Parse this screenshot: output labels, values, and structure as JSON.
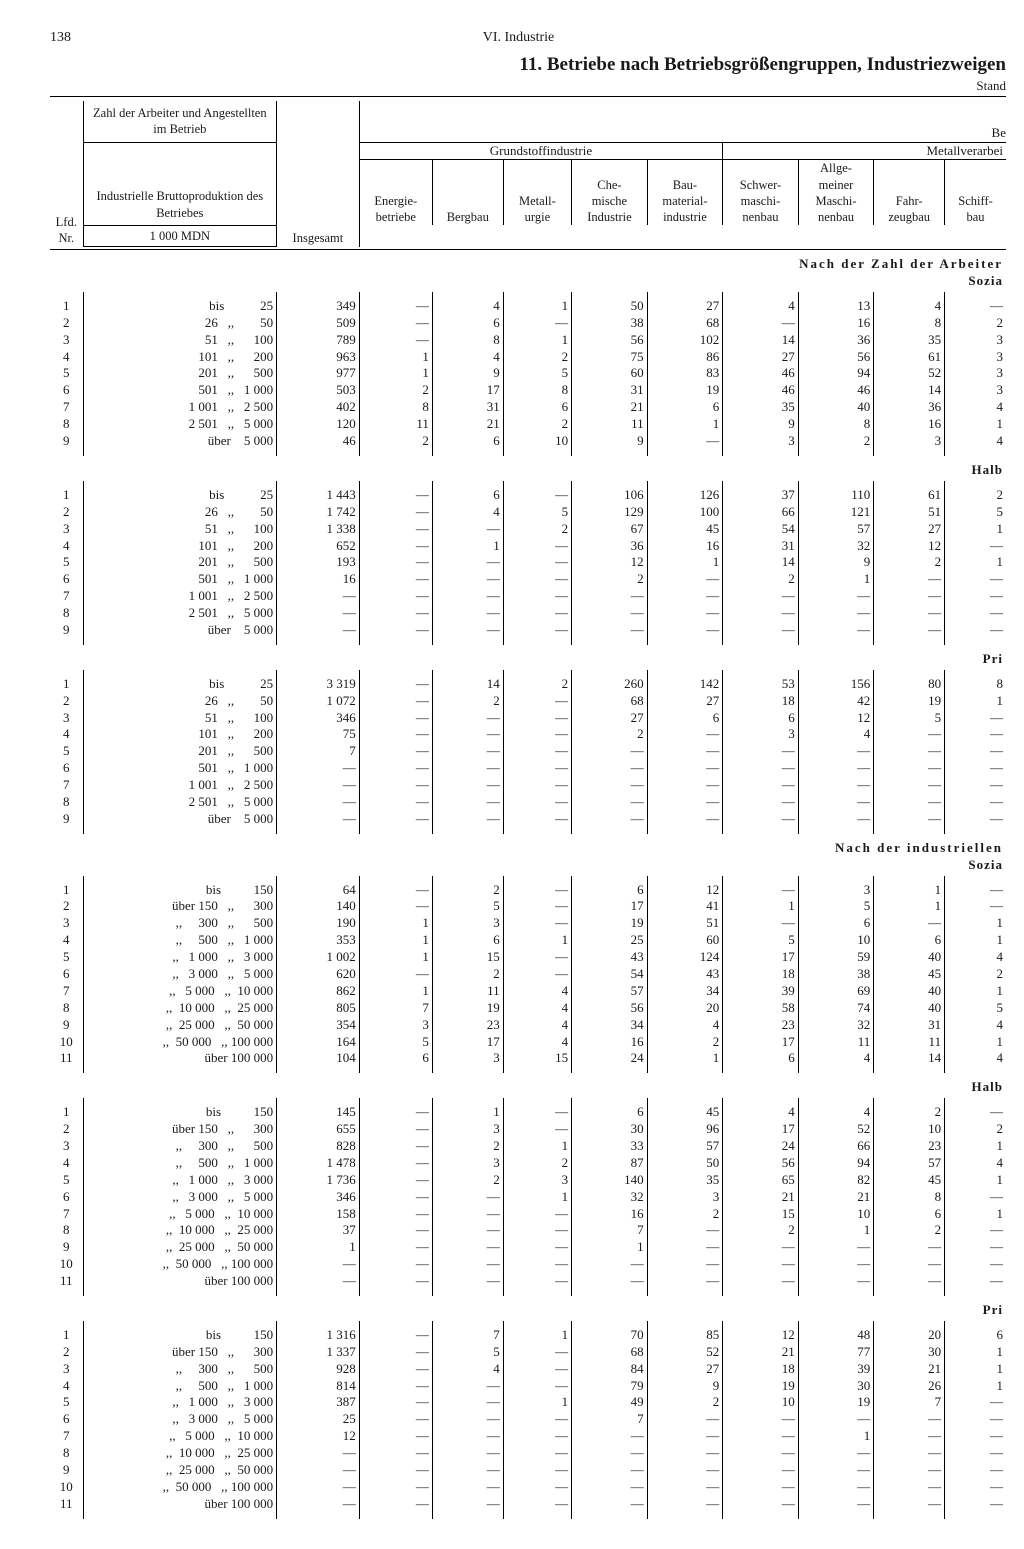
{
  "page_number": "138",
  "running_head": "VI. Industrie",
  "title": "11. Betriebe nach Betriebsgrößengruppen, Industriezweigen",
  "corner_right": "Stand",
  "cut_right": "Be",
  "header": {
    "lfd": "Lfd.\nNr.",
    "row_crit_top": "Zahl der Arbeiter und Angestellten im Betrieb",
    "row_crit_bot": "Industrielle Bruttoproduktion des Betriebes",
    "row_crit_unit": "1 000 MDN",
    "insgesamt": "Insgesamt",
    "grund": "Grundstoffindustrie",
    "metallv": "Metallverarbei",
    "cols": [
      "Energie-\nbetriebe",
      "Bergbau",
      "Metall-\nurgie",
      "Che-\nmische\nIndustrie",
      "Bau-\nmaterial-\nindustrie",
      "Schwer-\nmaschi-\nnenbau",
      "Allge-\nmeiner\nMaschi-\nnenbau",
      "Fahr-\nzeugbau",
      "Schiff-\nbau"
    ]
  },
  "size_labels_workers": [
    "bis           25",
    "26   ,,        50",
    "51   ,,      100",
    "101   ,,      200",
    "201   ,,      500",
    "501   ,,   1 000",
    "1 001   ,,   2 500",
    "2 501   ,,   5 000",
    "über    5 000"
  ],
  "size_labels_prod": [
    "bis          150",
    "über 150   ,,      300",
    ",,     300   ,,      500",
    ",,     500   ,,   1 000",
    ",,   1 000   ,,   3 000",
    ",,   3 000   ,,   5 000",
    ",,   5 000   ,,  10 000",
    ",,  10 000   ,,  25 000",
    ",,  25 000   ,,  50 000",
    ",,  50 000   ,, 100 000",
    "über 100 000"
  ],
  "section_headers": {
    "A_top": "Nach der Zahl der Arbeiter",
    "A1": "Sozia",
    "A2": "Halb",
    "A3": "Pri",
    "B_top": "Nach der industriellen",
    "B1": "Sozia",
    "B2": "Halb",
    "B3": "Pri"
  },
  "blocks": {
    "A1": [
      [
        "349",
        "—",
        "4",
        "1",
        "50",
        "27",
        "4",
        "13",
        "4",
        "—"
      ],
      [
        "509",
        "—",
        "6",
        "—",
        "38",
        "68",
        "—",
        "16",
        "8",
        "2"
      ],
      [
        "789",
        "—",
        "8",
        "1",
        "56",
        "102",
        "14",
        "36",
        "35",
        "3"
      ],
      [
        "963",
        "1",
        "4",
        "2",
        "75",
        "86",
        "27",
        "56",
        "61",
        "3"
      ],
      [
        "977",
        "1",
        "9",
        "5",
        "60",
        "83",
        "46",
        "94",
        "52",
        "3"
      ],
      [
        "503",
        "2",
        "17",
        "8",
        "31",
        "19",
        "46",
        "46",
        "14",
        "3"
      ],
      [
        "402",
        "8",
        "31",
        "6",
        "21",
        "6",
        "35",
        "40",
        "36",
        "4"
      ],
      [
        "120",
        "11",
        "21",
        "2",
        "11",
        "1",
        "9",
        "8",
        "16",
        "1"
      ],
      [
        "46",
        "2",
        "6",
        "10",
        "9",
        "—",
        "3",
        "2",
        "3",
        "4"
      ]
    ],
    "A2": [
      [
        "1 443",
        "—",
        "6",
        "—",
        "106",
        "126",
        "37",
        "110",
        "61",
        "2"
      ],
      [
        "1 742",
        "—",
        "4",
        "5",
        "129",
        "100",
        "66",
        "121",
        "51",
        "5"
      ],
      [
        "1 338",
        "—",
        "—",
        "2",
        "67",
        "45",
        "54",
        "57",
        "27",
        "1"
      ],
      [
        "652",
        "—",
        "1",
        "—",
        "36",
        "16",
        "31",
        "32",
        "12",
        "—"
      ],
      [
        "193",
        "—",
        "—",
        "—",
        "12",
        "1",
        "14",
        "9",
        "2",
        "1"
      ],
      [
        "16",
        "—",
        "—",
        "—",
        "2",
        "—",
        "2",
        "1",
        "—",
        "—"
      ],
      [
        "—",
        "—",
        "—",
        "—",
        "—",
        "—",
        "—",
        "—",
        "—",
        "—"
      ],
      [
        "—",
        "—",
        "—",
        "—",
        "—",
        "—",
        "—",
        "—",
        "—",
        "—"
      ],
      [
        "—",
        "—",
        "—",
        "—",
        "—",
        "—",
        "—",
        "—",
        "—",
        "—"
      ]
    ],
    "A3": [
      [
        "3 319",
        "—",
        "14",
        "2",
        "260",
        "142",
        "53",
        "156",
        "80",
        "8"
      ],
      [
        "1 072",
        "—",
        "2",
        "—",
        "68",
        "27",
        "18",
        "42",
        "19",
        "1"
      ],
      [
        "346",
        "—",
        "—",
        "—",
        "27",
        "6",
        "6",
        "12",
        "5",
        "—"
      ],
      [
        "75",
        "—",
        "—",
        "—",
        "2",
        "—",
        "3",
        "4",
        "—",
        "—"
      ],
      [
        "7",
        "—",
        "—",
        "—",
        "—",
        "—",
        "—",
        "—",
        "—",
        "—"
      ],
      [
        "—",
        "—",
        "—",
        "—",
        "—",
        "—",
        "—",
        "—",
        "—",
        "—"
      ],
      [
        "—",
        "—",
        "—",
        "—",
        "—",
        "—",
        "—",
        "—",
        "—",
        "—"
      ],
      [
        "—",
        "—",
        "—",
        "—",
        "—",
        "—",
        "—",
        "—",
        "—",
        "—"
      ],
      [
        "—",
        "—",
        "—",
        "—",
        "—",
        "—",
        "—",
        "—",
        "—",
        "—"
      ]
    ],
    "B1": [
      [
        "64",
        "—",
        "2",
        "—",
        "6",
        "12",
        "—",
        "3",
        "1",
        "—"
      ],
      [
        "140",
        "—",
        "5",
        "—",
        "17",
        "41",
        "1",
        "5",
        "1",
        "—"
      ],
      [
        "190",
        "1",
        "3",
        "—",
        "19",
        "51",
        "—",
        "6",
        "—",
        "1"
      ],
      [
        "353",
        "1",
        "6",
        "1",
        "25",
        "60",
        "5",
        "10",
        "6",
        "1"
      ],
      [
        "1 002",
        "1",
        "15",
        "—",
        "43",
        "124",
        "17",
        "59",
        "40",
        "4"
      ],
      [
        "620",
        "—",
        "2",
        "—",
        "54",
        "43",
        "18",
        "38",
        "45",
        "2"
      ],
      [
        "862",
        "1",
        "11",
        "4",
        "57",
        "34",
        "39",
        "69",
        "40",
        "1"
      ],
      [
        "805",
        "7",
        "19",
        "4",
        "56",
        "20",
        "58",
        "74",
        "40",
        "5"
      ],
      [
        "354",
        "3",
        "23",
        "4",
        "34",
        "4",
        "23",
        "32",
        "31",
        "4"
      ],
      [
        "164",
        "5",
        "17",
        "4",
        "16",
        "2",
        "17",
        "11",
        "11",
        "1"
      ],
      [
        "104",
        "6",
        "3",
        "15",
        "24",
        "1",
        "6",
        "4",
        "14",
        "4"
      ]
    ],
    "B2": [
      [
        "145",
        "—",
        "1",
        "—",
        "6",
        "45",
        "4",
        "4",
        "2",
        "—"
      ],
      [
        "655",
        "—",
        "3",
        "—",
        "30",
        "96",
        "17",
        "52",
        "10",
        "2"
      ],
      [
        "828",
        "—",
        "2",
        "1",
        "33",
        "57",
        "24",
        "66",
        "23",
        "1"
      ],
      [
        "1 478",
        "—",
        "3",
        "2",
        "87",
        "50",
        "56",
        "94",
        "57",
        "4"
      ],
      [
        "1 736",
        "—",
        "2",
        "3",
        "140",
        "35",
        "65",
        "82",
        "45",
        "1"
      ],
      [
        "346",
        "—",
        "—",
        "1",
        "32",
        "3",
        "21",
        "21",
        "8",
        "—"
      ],
      [
        "158",
        "—",
        "—",
        "—",
        "16",
        "2",
        "15",
        "10",
        "6",
        "1"
      ],
      [
        "37",
        "—",
        "—",
        "—",
        "7",
        "—",
        "2",
        "1",
        "2",
        "—"
      ],
      [
        "1",
        "—",
        "—",
        "—",
        "1",
        "—",
        "—",
        "—",
        "—",
        "—"
      ],
      [
        "—",
        "—",
        "—",
        "—",
        "—",
        "—",
        "—",
        "—",
        "—",
        "—"
      ],
      [
        "—",
        "—",
        "—",
        "—",
        "—",
        "—",
        "—",
        "—",
        "—",
        "—"
      ]
    ],
    "B3": [
      [
        "1 316",
        "—",
        "7",
        "1",
        "70",
        "85",
        "12",
        "48",
        "20",
        "6"
      ],
      [
        "1 337",
        "—",
        "5",
        "—",
        "68",
        "52",
        "21",
        "77",
        "30",
        "1"
      ],
      [
        "928",
        "—",
        "4",
        "—",
        "84",
        "27",
        "18",
        "39",
        "21",
        "1"
      ],
      [
        "814",
        "—",
        "—",
        "—",
        "79",
        "9",
        "19",
        "30",
        "26",
        "1"
      ],
      [
        "387",
        "—",
        "—",
        "1",
        "49",
        "2",
        "10",
        "19",
        "7",
        "—"
      ],
      [
        "25",
        "—",
        "—",
        "—",
        "7",
        "—",
        "—",
        "—",
        "—",
        "—"
      ],
      [
        "12",
        "—",
        "—",
        "—",
        "—",
        "—",
        "—",
        "1",
        "—",
        "—"
      ],
      [
        "—",
        "—",
        "—",
        "—",
        "—",
        "—",
        "—",
        "—",
        "—",
        "—"
      ],
      [
        "—",
        "—",
        "—",
        "—",
        "—",
        "—",
        "—",
        "—",
        "—",
        "—"
      ],
      [
        "—",
        "—",
        "—",
        "—",
        "—",
        "—",
        "—",
        "—",
        "—",
        "—"
      ],
      [
        "—",
        "—",
        "—",
        "—",
        "—",
        "—",
        "—",
        "—",
        "—",
        "—"
      ]
    ]
  }
}
